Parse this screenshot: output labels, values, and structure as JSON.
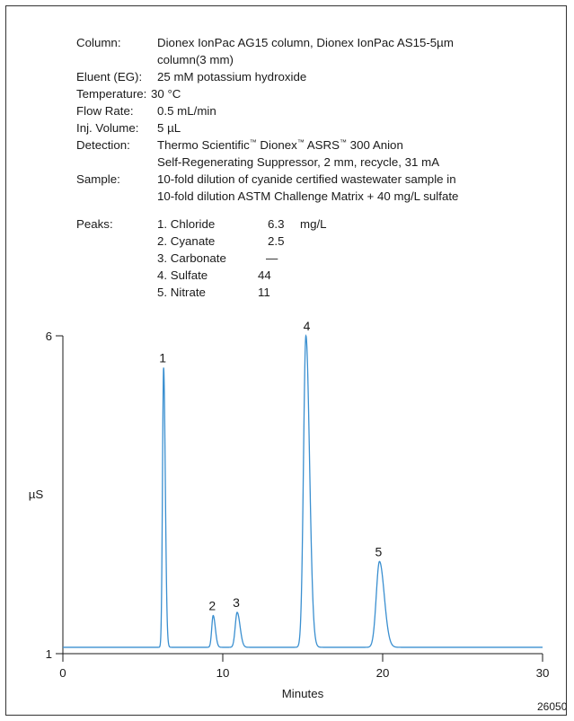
{
  "conditions": [
    {
      "label": "Column:",
      "lines": [
        "Dionex IonPac AG15  column, Dionex IonPac AS15-5µm",
        "column(3 mm)"
      ]
    },
    {
      "label": "Eluent (EG):",
      "lines": [
        "25 mM potassium hydroxide"
      ]
    },
    {
      "label": "Temperature:",
      "lines": [
        "30 °C"
      ]
    },
    {
      "label": "Flow Rate:",
      "lines": [
        "0.5 mL/min"
      ]
    },
    {
      "label": "Inj. Volume:",
      "lines": [
        "5 µL"
      ]
    },
    {
      "label": "Detection:",
      "lines": [
        "Thermo Scientific™ Dionex™ ASRS™ 300 Anion",
        "Self-Regenerating Suppressor, 2 mm, recycle, 31 mA"
      ]
    },
    {
      "label": "Sample:",
      "lines": [
        "10-fold dilution of cyanide certified wastewater sample in",
        "10-fold dilution ASTM Challenge Matrix + 40 mg/L sulfate"
      ]
    }
  ],
  "peaks_table": {
    "label": "Peaks:",
    "unit": "mg/L",
    "rows": [
      {
        "name": "1. Chloride",
        "value": "6.3"
      },
      {
        "name": "2. Cyanate",
        "value": "2.5"
      },
      {
        "name": "3. Carbonate",
        "value": "—"
      },
      {
        "name": "4. Sulfate",
        "value": "44"
      },
      {
        "name": "5. Nitrate",
        "value": "11"
      }
    ]
  },
  "chart_data": {
    "type": "line",
    "xlabel": "Minutes",
    "ylabel": "µS",
    "xlim": [
      0,
      30
    ],
    "ylim": [
      1,
      6
    ],
    "xticks": [
      "0",
      "10",
      "20",
      "30"
    ],
    "yticks": [
      "1",
      "6"
    ],
    "baseline": 1.1,
    "series_color": "#3a8fd0",
    "peaks": [
      {
        "label": "1",
        "time": 6.3,
        "height": 5.5,
        "width": 0.07
      },
      {
        "label": "2",
        "time": 9.4,
        "height": 1.6,
        "width": 0.09
      },
      {
        "label": "3",
        "time": 10.9,
        "height": 1.65,
        "width": 0.12
      },
      {
        "label": "4",
        "time": 15.2,
        "height": 6.0,
        "width": 0.15
      },
      {
        "label": "5",
        "time": 19.8,
        "height": 2.45,
        "width": 0.2
      }
    ]
  },
  "figure_id": "26050"
}
